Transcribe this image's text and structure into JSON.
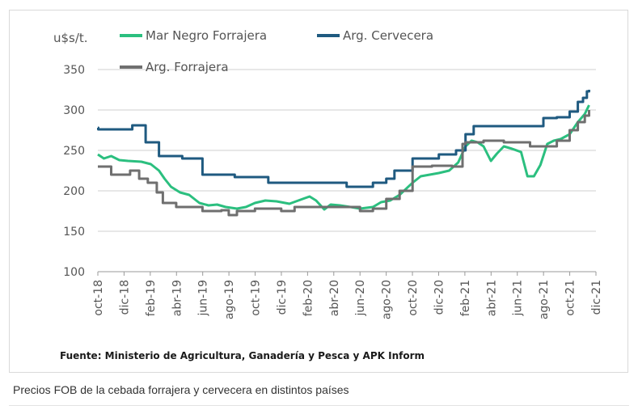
{
  "chart_data": {
    "type": "line",
    "y_unit": "u$s/t.",
    "ylim": [
      100,
      350
    ],
    "yticks": [
      100,
      150,
      200,
      250,
      300,
      350
    ],
    "xlim": [
      "2018-10",
      "2021-12"
    ],
    "xtick_labels": [
      "oct-18",
      "dic-18",
      "feb-19",
      "abr-19",
      "jun-19",
      "ago-19",
      "oct-19",
      "dic-19",
      "feb-20",
      "abr-20",
      "jun-20",
      "ago-20",
      "oct-20",
      "dic-20",
      "feb-21",
      "abr-21",
      "jun-21",
      "ago-21",
      "oct-21",
      "dic-21"
    ],
    "grid": "horizontal",
    "legend": "top",
    "source": "Fuente: Ministerio de Agricultura, Ganadería y Pesca y APK Inform",
    "series": [
      {
        "name": "Mar Negro Forrajera",
        "color": "#2bbf7f",
        "points": [
          [
            "2018-10-01",
            245
          ],
          [
            "2018-10-15",
            240
          ],
          [
            "2018-11-01",
            243
          ],
          [
            "2018-11-20",
            238
          ],
          [
            "2018-12-10",
            237
          ],
          [
            "2019-01-10",
            236
          ],
          [
            "2019-02-01",
            233
          ],
          [
            "2019-02-20",
            225
          ],
          [
            "2019-03-05",
            215
          ],
          [
            "2019-03-20",
            205
          ],
          [
            "2019-04-10",
            198
          ],
          [
            "2019-05-01",
            195
          ],
          [
            "2019-05-25",
            185
          ],
          [
            "2019-06-15",
            182
          ],
          [
            "2019-07-05",
            183
          ],
          [
            "2019-07-25",
            180
          ],
          [
            "2019-08-20",
            178
          ],
          [
            "2019-09-10",
            180
          ],
          [
            "2019-10-01",
            185
          ],
          [
            "2019-10-25",
            188
          ],
          [
            "2019-11-20",
            187
          ],
          [
            "2019-12-20",
            184
          ],
          [
            "2020-01-20",
            190
          ],
          [
            "2020-02-05",
            193
          ],
          [
            "2020-02-20",
            188
          ],
          [
            "2020-03-10",
            177
          ],
          [
            "2020-03-25",
            183
          ],
          [
            "2020-04-15",
            182
          ],
          [
            "2020-05-10",
            180
          ],
          [
            "2020-06-01",
            178
          ],
          [
            "2020-07-01",
            180
          ],
          [
            "2020-07-20",
            186
          ],
          [
            "2020-08-10",
            188
          ],
          [
            "2020-09-01",
            195
          ],
          [
            "2020-10-01",
            210
          ],
          [
            "2020-10-20",
            218
          ],
          [
            "2020-11-10",
            220
          ],
          [
            "2020-12-01",
            222
          ],
          [
            "2020-12-25",
            225
          ],
          [
            "2021-01-15",
            235
          ],
          [
            "2021-02-01",
            255
          ],
          [
            "2021-02-15",
            262
          ],
          [
            "2021-03-01",
            260
          ],
          [
            "2021-03-15",
            255
          ],
          [
            "2021-04-01",
            237
          ],
          [
            "2021-04-15",
            246
          ],
          [
            "2021-05-01",
            255
          ],
          [
            "2021-05-20",
            252
          ],
          [
            "2021-06-10",
            248
          ],
          [
            "2021-06-25",
            218
          ],
          [
            "2021-07-10",
            218
          ],
          [
            "2021-07-25",
            232
          ],
          [
            "2021-08-10",
            258
          ],
          [
            "2021-08-25",
            262
          ],
          [
            "2021-09-10",
            264
          ],
          [
            "2021-10-01",
            270
          ],
          [
            "2021-10-20",
            285
          ],
          [
            "2021-11-05",
            295
          ],
          [
            "2021-11-15",
            306
          ]
        ]
      },
      {
        "name": "Arg. Cervecera",
        "color": "#1f5a80",
        "points": [
          [
            "2018-10-01",
            278
          ],
          [
            "2018-10-02",
            276
          ],
          [
            "2018-12-20",
            281
          ],
          [
            "2019-01-20",
            260
          ],
          [
            "2019-02-20",
            243
          ],
          [
            "2019-04-15",
            240
          ],
          [
            "2019-06-01",
            220
          ],
          [
            "2019-08-15",
            217
          ],
          [
            "2019-11-01",
            210
          ],
          [
            "2020-05-01",
            205
          ],
          [
            "2020-07-01",
            210
          ],
          [
            "2020-08-01",
            215
          ],
          [
            "2020-08-20",
            225
          ],
          [
            "2020-10-01",
            240
          ],
          [
            "2020-12-01",
            245
          ],
          [
            "2021-01-10",
            250
          ],
          [
            "2021-02-01",
            270
          ],
          [
            "2021-02-20",
            280
          ],
          [
            "2021-05-01",
            280
          ],
          [
            "2021-07-01",
            280
          ],
          [
            "2021-08-01",
            290
          ],
          [
            "2021-09-01",
            291
          ],
          [
            "2021-10-01",
            298
          ],
          [
            "2021-10-20",
            310
          ],
          [
            "2021-11-01",
            315
          ],
          [
            "2021-11-10",
            323
          ],
          [
            "2021-11-15",
            325
          ]
        ]
      },
      {
        "name": "Arg. Forrajera",
        "color": "#6f6f6f",
        "points": [
          [
            "2018-10-01",
            230
          ],
          [
            "2018-11-01",
            220
          ],
          [
            "2018-12-15",
            225
          ],
          [
            "2019-01-05",
            215
          ],
          [
            "2019-01-25",
            210
          ],
          [
            "2019-02-15",
            198
          ],
          [
            "2019-03-01",
            185
          ],
          [
            "2019-04-01",
            180
          ],
          [
            "2019-06-01",
            175
          ],
          [
            "2019-07-15",
            176
          ],
          [
            "2019-08-01",
            170
          ],
          [
            "2019-08-20",
            175
          ],
          [
            "2019-10-01",
            178
          ],
          [
            "2019-12-01",
            175
          ],
          [
            "2020-01-01",
            180
          ],
          [
            "2020-06-01",
            175
          ],
          [
            "2020-07-01",
            178
          ],
          [
            "2020-08-01",
            190
          ],
          [
            "2020-09-01",
            200
          ],
          [
            "2020-10-01",
            230
          ],
          [
            "2020-11-15",
            231
          ],
          [
            "2021-01-01",
            230
          ],
          [
            "2021-01-25",
            258
          ],
          [
            "2021-02-01",
            260
          ],
          [
            "2021-03-15",
            262
          ],
          [
            "2021-05-01",
            260
          ],
          [
            "2021-07-01",
            255
          ],
          [
            "2021-08-01",
            255
          ],
          [
            "2021-09-01",
            262
          ],
          [
            "2021-10-01",
            275
          ],
          [
            "2021-10-20",
            285
          ],
          [
            "2021-11-05",
            293
          ],
          [
            "2021-11-15",
            300
          ]
        ]
      }
    ]
  },
  "caption": "Precios FOB de la cebada forrajera y cervecera en distintos países"
}
